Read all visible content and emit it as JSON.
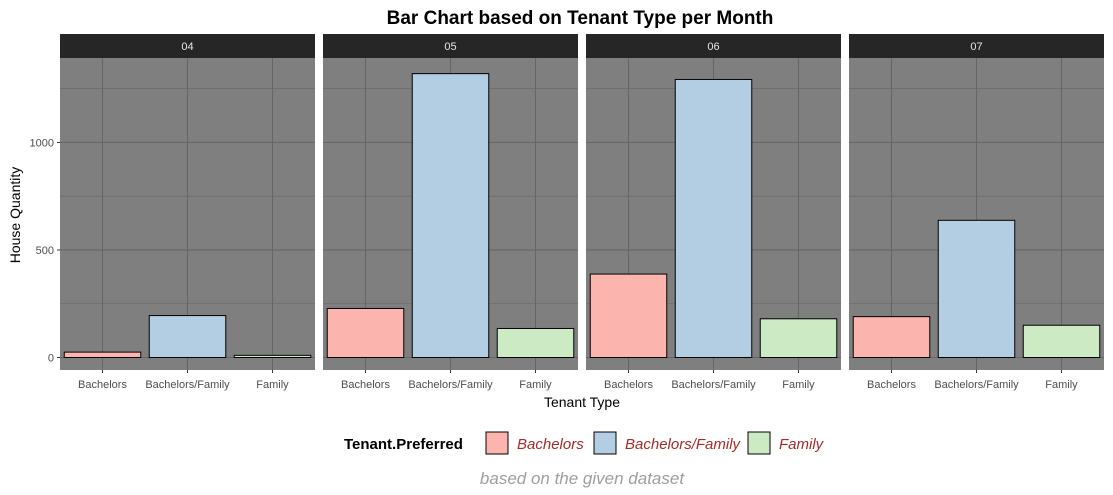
{
  "chart_data": {
    "type": "bar",
    "title": "Bar Chart based on Tenant Type per Month",
    "xlabel": "Tenant Type",
    "ylabel": "House Quantity",
    "caption": "based on the given dataset",
    "ylim": [
      0,
      1350
    ],
    "yticks": [
      0,
      500,
      1000
    ],
    "categories": [
      "Bachelors",
      "Bachelors/Family",
      "Family"
    ],
    "panels": [
      {
        "label": "04",
        "values": [
          25,
          195,
          10
        ]
      },
      {
        "label": "05",
        "values": [
          228,
          1320,
          135
        ]
      },
      {
        "label": "06",
        "values": [
          388,
          1293,
          180
        ]
      },
      {
        "label": "07",
        "values": [
          190,
          638,
          150
        ]
      }
    ],
    "legend": {
      "title": "Tenant.Preferred",
      "position": "bottom",
      "entries": [
        "Bachelors",
        "Bachelors/Family",
        "Family"
      ]
    },
    "colors": {
      "Bachelors": "#fbb4ae",
      "Bachelors/Family": "#b3cde3",
      "Family": "#ccebc5",
      "panel_background": "#7f7f7f",
      "strip_background": "#262626",
      "grid": "#666666"
    },
    "grid": true
  }
}
